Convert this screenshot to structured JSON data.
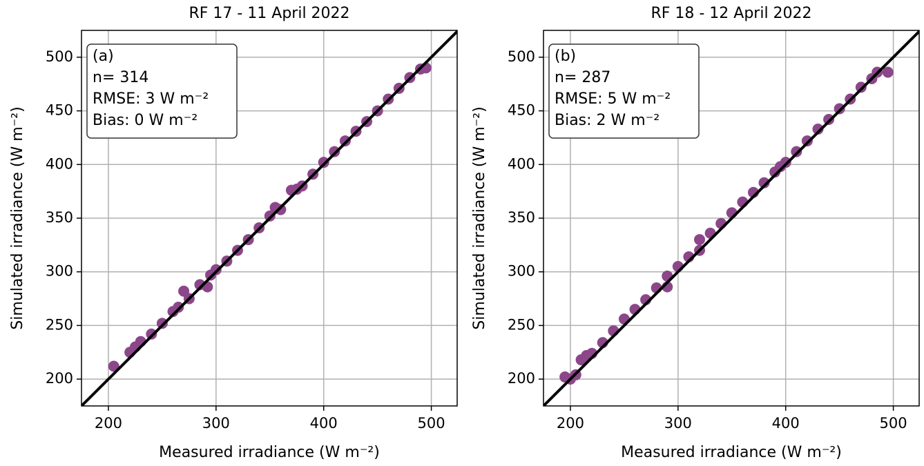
{
  "chart_data": [
    {
      "type": "scatter",
      "title": "RF 17 - 11 April 2022",
      "xlabel": "Measured irradiance (W m⁻²)",
      "ylabel": "Simulated irradiance (W m⁻²)",
      "annotations": [
        "(a)",
        "n= 314",
        "RMSE: 3 W m⁻²",
        "Bias: 0 W m⁻²"
      ],
      "annotation_corner": "upper left",
      "color": "#8b4789",
      "grid": true,
      "identity_line": true,
      "xlim": [
        175,
        524
      ],
      "ylim": [
        175,
        525
      ],
      "xticks": [
        200,
        300,
        400,
        500
      ],
      "yticks": [
        200,
        250,
        300,
        350,
        400,
        450,
        500
      ],
      "x": [
        205,
        220,
        225,
        230,
        240,
        250,
        260,
        265,
        270,
        275,
        285,
        292,
        295,
        300,
        310,
        320,
        330,
        340,
        350,
        355,
        360,
        370,
        375,
        380,
        390,
        400,
        410,
        420,
        430,
        440,
        450,
        460,
        470,
        480,
        490,
        495
      ],
      "y": [
        212,
        225,
        230,
        235,
        242,
        252,
        263,
        267,
        282,
        275,
        288,
        286,
        297,
        302,
        310,
        320,
        330,
        341,
        352,
        360,
        358,
        376,
        377,
        380,
        391,
        402,
        412,
        422,
        431,
        440,
        450,
        461,
        471,
        481,
        489,
        490
      ]
    },
    {
      "type": "scatter",
      "title": "RF 18 - 12 April 2022",
      "xlabel": "Measured irradiance (W m⁻²)",
      "ylabel": "Simulated irradiance (W m⁻²)",
      "annotations": [
        "(b)",
        "n= 287",
        "RMSE: 5 W m⁻²",
        "Bias: 2 W m⁻²"
      ],
      "annotation_corner": "upper left",
      "color": "#8b4789",
      "grid": true,
      "identity_line": true,
      "xlim": [
        175,
        524
      ],
      "ylim": [
        175,
        525
      ],
      "xticks": [
        200,
        300,
        400,
        500
      ],
      "yticks": [
        200,
        250,
        300,
        350,
        400,
        450,
        500
      ],
      "x": [
        195,
        200,
        205,
        210,
        215,
        220,
        230,
        240,
        250,
        260,
        270,
        280,
        290,
        290,
        300,
        310,
        320,
        320,
        330,
        340,
        350,
        360,
        370,
        380,
        390,
        395,
        400,
        410,
        420,
        430,
        440,
        450,
        460,
        470,
        480,
        485,
        495
      ],
      "y": [
        202,
        200,
        204,
        218,
        222,
        224,
        234,
        245,
        256,
        265,
        274,
        285,
        286,
        296,
        305,
        314,
        320,
        330,
        336,
        345,
        355,
        365,
        374,
        383,
        393,
        398,
        402,
        412,
        422,
        433,
        442,
        452,
        461,
        472,
        480,
        486,
        486
      ]
    }
  ]
}
